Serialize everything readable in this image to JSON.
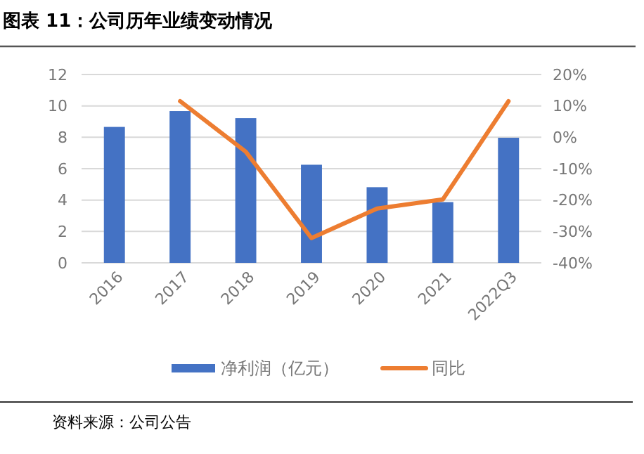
{
  "chart_data": {
    "type": "bar",
    "title": "图表 11：公司历年业绩变动情况",
    "categories": [
      "2016",
      "2017",
      "2018",
      "2019",
      "2020",
      "2021",
      "2022Q3"
    ],
    "series": [
      {
        "name": "净利润（亿元）",
        "color": "#4472c4",
        "values": [
          8.66,
          9.67,
          9.22,
          6.25,
          4.82,
          3.87,
          7.97
        ]
      },
      {
        "name": "同比",
        "type": "line",
        "axis": "y2",
        "color": "#ed7d31",
        "values": [
          null,
          11.5,
          -4.6,
          -32.1,
          -22.7,
          -19.8,
          11.5
        ]
      }
    ],
    "ylim": [
      0,
      12
    ],
    "yticks": [
      0,
      2,
      4,
      6,
      8,
      10,
      12
    ],
    "y2lim": [
      -40,
      20
    ],
    "y2ticks": [
      {
        "value": -40,
        "label": "-40%"
      },
      {
        "value": -30,
        "label": "-30%"
      },
      {
        "value": -20,
        "label": "-20%"
      },
      {
        "value": -10,
        "label": "-10%"
      },
      {
        "value": 0,
        "label": "0%"
      },
      {
        "value": 10,
        "label": "10%"
      },
      {
        "value": 20,
        "label": "20%"
      }
    ],
    "grid": "y",
    "legend": "bottom",
    "annotations": [
      "资料来源：公司公告"
    ]
  }
}
